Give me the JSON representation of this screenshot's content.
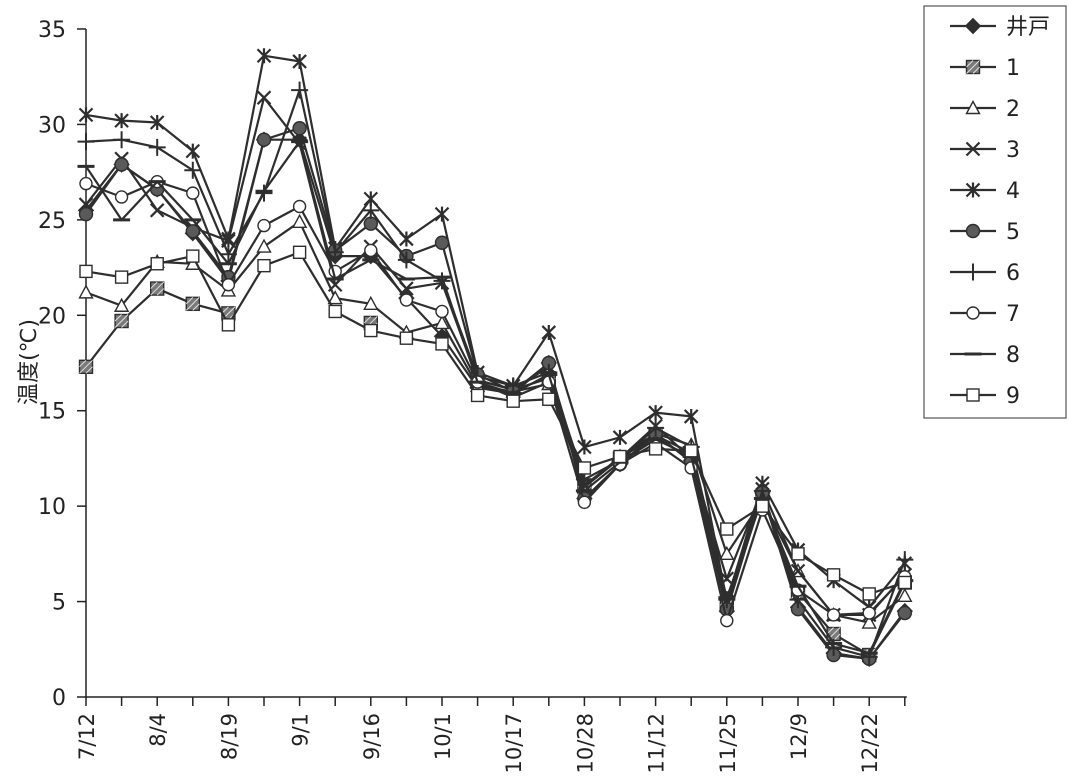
{
  "chart_data": {
    "type": "line",
    "title": "",
    "xlabel": "",
    "ylabel": "温度(℃)",
    "ylim": [
      0,
      35
    ],
    "yticks": [
      0,
      5,
      10,
      15,
      20,
      25,
      30,
      35
    ],
    "grid": false,
    "legend_position": "top-right",
    "categories": [
      "7/12",
      "",
      "8/4",
      "",
      "8/19",
      "",
      "9/1",
      "",
      "9/16",
      "",
      "10/1",
      "",
      "10/17",
      "",
      "10/28",
      "",
      "11/12",
      "",
      "11/25",
      "",
      "12/9",
      "",
      "12/22",
      ""
    ],
    "x_tick_labels": [
      "7/12",
      "8/4",
      "8/19",
      "9/1",
      "9/16",
      "10/1",
      "10/17",
      "10/28",
      "11/12",
      "11/25",
      "12/9",
      "12/22"
    ],
    "series": [
      {
        "name": "井戸",
        "marker": "diamond-filled",
        "values": [
          25.5,
          27.9,
          26.6,
          24.3,
          21.8,
          29.2,
          29.2,
          23.1,
          23.1,
          20.9,
          18.9,
          16.2,
          15.9,
          17.5,
          10.4,
          12.2,
          13.7,
          12.4,
          4.5,
          10.7,
          4.7,
          2.3,
          2.0,
          4.5
        ]
      },
      {
        "name": "1",
        "marker": "square-hatched",
        "values": [
          17.3,
          19.7,
          21.4,
          20.6,
          20.1,
          null,
          null,
          null,
          19.6,
          null,
          null,
          16.6,
          16.1,
          16.7,
          11.0,
          12.5,
          13.7,
          12.8,
          4.8,
          10.5,
          5.5,
          3.3,
          2.2,
          6.0
        ]
      },
      {
        "name": "2",
        "marker": "triangle-open",
        "values": [
          21.2,
          20.5,
          22.8,
          22.7,
          21.3,
          23.6,
          24.9,
          20.9,
          20.6,
          19.1,
          19.6,
          16.3,
          16.0,
          16.4,
          11.0,
          12.6,
          13.8,
          13.2,
          7.5,
          10.3,
          6.6,
          4.3,
          3.9,
          5.3
        ]
      },
      {
        "name": "3",
        "marker": "x",
        "values": [
          25.8,
          28.2,
          25.5,
          24.6,
          23.9,
          31.4,
          29.0,
          21.6,
          23.6,
          21.4,
          21.7,
          16.6,
          16.1,
          17.3,
          11.1,
          12.5,
          14.2,
          12.5,
          6.2,
          10.9,
          6.6,
          4.3,
          4.3,
          6.4
        ]
      },
      {
        "name": "4",
        "marker": "asterisk",
        "values": [
          30.5,
          30.2,
          30.1,
          28.6,
          24.0,
          33.6,
          33.3,
          23.5,
          26.1,
          24.0,
          25.3,
          17.0,
          16.3,
          19.1,
          13.1,
          13.6,
          14.9,
          14.7,
          5.0,
          11.2,
          7.7,
          6.1,
          4.7,
          7.0
        ]
      },
      {
        "name": "5",
        "marker": "circle-filled",
        "values": [
          25.3,
          27.9,
          26.6,
          24.4,
          22.0,
          29.2,
          29.8,
          23.4,
          24.8,
          23.1,
          23.8,
          16.9,
          16.0,
          17.5,
          10.4,
          12.2,
          13.8,
          12.3,
          4.6,
          10.7,
          4.6,
          2.2,
          2.0,
          4.4
        ]
      },
      {
        "name": "6",
        "marker": "plus",
        "values": [
          29.1,
          29.2,
          28.8,
          27.6,
          23.2,
          26.4,
          31.8,
          23.3,
          25.5,
          22.9,
          21.8,
          16.8,
          16.3,
          17.0,
          11.4,
          12.4,
          14.1,
          13.1,
          5.1,
          10.8,
          5.1,
          2.6,
          2.1,
          7.2
        ]
      },
      {
        "name": "7",
        "marker": "circle-open",
        "values": [
          26.9,
          26.2,
          27.0,
          26.4,
          21.6,
          24.7,
          25.7,
          22.3,
          23.4,
          20.8,
          20.2,
          16.5,
          15.7,
          16.5,
          10.2,
          12.2,
          13.3,
          12.0,
          4.0,
          9.8,
          5.6,
          4.3,
          4.4,
          6.3
        ]
      },
      {
        "name": "8",
        "marker": "dash",
        "values": [
          27.8,
          25.0,
          27.0,
          25.0,
          22.7,
          26.5,
          29.1,
          21.9,
          22.9,
          21.9,
          22.0,
          16.5,
          15.9,
          16.9,
          10.8,
          12.3,
          13.5,
          12.6,
          5.2,
          10.4,
          5.8,
          2.8,
          2.3,
          6.1
        ]
      },
      {
        "name": "9",
        "marker": "square-open",
        "values": [
          22.3,
          22.0,
          22.7,
          23.1,
          19.5,
          22.6,
          23.3,
          20.2,
          19.2,
          18.8,
          18.5,
          15.8,
          15.5,
          15.6,
          12.0,
          12.6,
          13.0,
          12.9,
          8.8,
          10.0,
          7.5,
          6.4,
          5.4,
          6.0
        ]
      }
    ]
  }
}
